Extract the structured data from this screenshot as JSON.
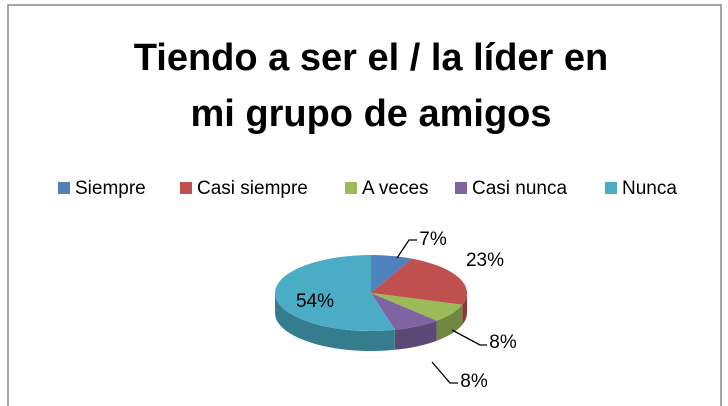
{
  "chart_data": {
    "type": "pie3d",
    "title": [
      "Tiendo a ser el / la líder en",
      "mi grupo de amigos"
    ],
    "categories": [
      "Siempre",
      "Casi siempre",
      "A veces",
      "Casi nunca",
      "Nunca"
    ],
    "values": [
      7,
      23,
      8,
      8,
      54
    ],
    "value_labels": [
      "7%",
      "23%",
      "8%",
      "8%",
      "54%"
    ],
    "colors": [
      "#4f81bd",
      "#c0504d",
      "#9bbb59",
      "#8064a2",
      "#4bacc6"
    ],
    "legend": "top"
  }
}
